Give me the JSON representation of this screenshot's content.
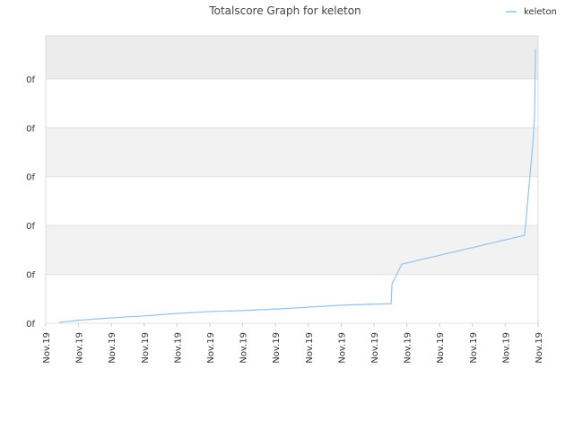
{
  "chart_data": {
    "type": "line",
    "title": "Totalscore Graph for keleton",
    "x": [
      0.41,
      0.98,
      1.99,
      3.0,
      3.99,
      5.0,
      6.01,
      7.0,
      8.01,
      9.02,
      10.0,
      10.52,
      10.55,
      10.85,
      14.59,
      14.84,
      14.89,
      14.92
    ],
    "series": [
      {
        "name": "keleton",
        "color": "#90c4ee",
        "values": [
          0.02,
          0.06,
          0.11,
          0.15,
          0.2,
          0.24,
          0.26,
          0.29,
          0.33,
          0.37,
          0.39,
          0.4,
          0.81,
          1.21,
          1.8,
          3.68,
          4.23,
          5.61
        ]
      }
    ],
    "xlim": [
      0,
      15
    ],
    "xticks": [
      {
        "value": 0,
        "label": "Nov.19"
      },
      {
        "value": 1,
        "label": "Nov.19"
      },
      {
        "value": 2,
        "label": "Nov.19"
      },
      {
        "value": 3,
        "label": "Nov.19"
      },
      {
        "value": 4,
        "label": "Nov.19"
      },
      {
        "value": 5,
        "label": "Nov.19"
      },
      {
        "value": 6,
        "label": "Nov.19"
      },
      {
        "value": 7,
        "label": "Nov.19"
      },
      {
        "value": 8,
        "label": "Nov.19"
      },
      {
        "value": 9,
        "label": "Nov.19"
      },
      {
        "value": 10,
        "label": "Nov.19"
      },
      {
        "value": 11,
        "label": "Nov.19"
      },
      {
        "value": 12,
        "label": "Nov.19"
      },
      {
        "value": 13,
        "label": "Nov.19"
      },
      {
        "value": 14,
        "label": "Nov.19"
      },
      {
        "value": 15,
        "label": "Nov.19"
      }
    ],
    "ylim": [
      0,
      5.88
    ],
    "yticks": [
      {
        "value": 0,
        "label": "0f"
      },
      {
        "value": 1,
        "label": "0f"
      },
      {
        "value": 2,
        "label": "0f"
      },
      {
        "value": 3,
        "label": "0f"
      },
      {
        "value": 4,
        "label": "0f"
      },
      {
        "value": 5,
        "label": "0f"
      }
    ],
    "grid": true,
    "legend": "top-right"
  }
}
